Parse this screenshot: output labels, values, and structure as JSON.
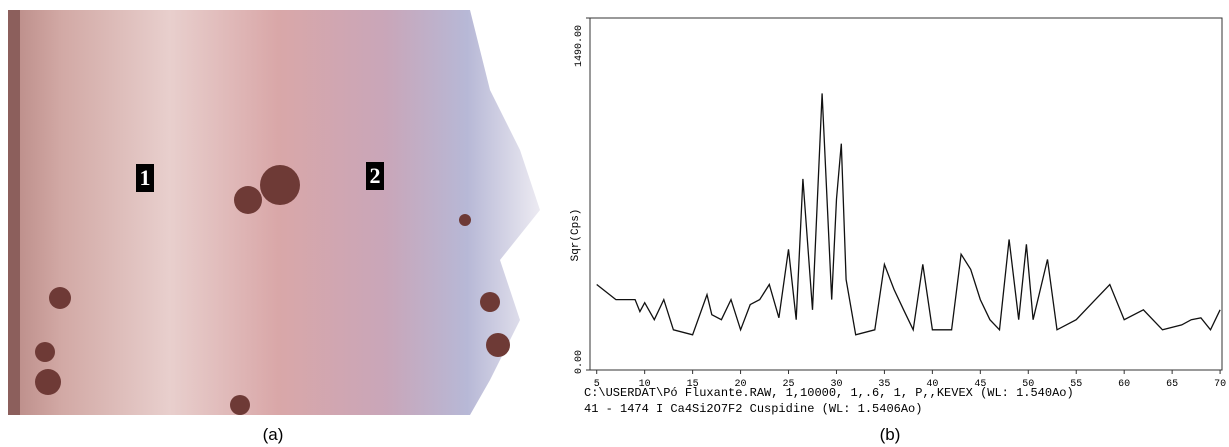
{
  "micrograph": {
    "labels": [
      "1",
      "2"
    ],
    "caption": "(a)"
  },
  "chart_data": {
    "type": "line",
    "y_label": "Sqr(Cps)",
    "x": [
      5,
      7,
      9,
      9.5,
      10,
      11,
      12,
      13,
      15,
      16.5,
      17,
      18,
      19,
      20,
      21,
      22,
      23,
      24,
      25,
      25.8,
      26.5,
      27.5,
      28.5,
      29.5,
      30,
      30.5,
      31,
      32,
      34,
      35,
      36,
      37,
      38,
      39,
      40,
      42,
      43,
      44,
      45,
      46,
      47,
      48,
      49,
      49.8,
      50.5,
      52,
      53,
      55,
      57,
      58.5,
      60,
      62,
      64,
      66,
      67,
      68,
      69,
      70
    ],
    "values": [
      362,
      298,
      298,
      247,
      285,
      213,
      298,
      170,
      149,
      319,
      234,
      213,
      298,
      170,
      277,
      298,
      362,
      221,
      511,
      213,
      809,
      255,
      1171,
      298,
      724,
      958,
      383,
      149,
      170,
      447,
      341,
      255,
      170,
      447,
      170,
      170,
      490,
      426,
      298,
      213,
      170,
      553,
      213,
      532,
      213,
      468,
      170,
      213,
      298,
      362,
      213,
      255,
      170,
      191,
      213,
      221,
      170,
      255
    ],
    "color": "#111111",
    "xlim": [
      4.3,
      70.2
    ],
    "xticks": [
      5,
      10,
      15,
      20,
      25,
      30,
      35,
      40,
      45,
      50,
      55,
      60,
      65,
      70
    ],
    "ylim": [
      0,
      1490
    ],
    "yticks": [
      {
        "value": 0,
        "label": "0.00"
      },
      {
        "value": 1490,
        "label": "1490.00"
      }
    ],
    "notes": [
      "C:\\USERDAT\\Pó Fluxante.RAW, 1,10000, 1,.6, 1, P,,KEVEX (WL: 1.540Ao)",
      "41 - 1474 I Ca4Si2O7F2 Cuspidine  (WL: 1.5406Ao)"
    ],
    "caption": "(b)"
  }
}
